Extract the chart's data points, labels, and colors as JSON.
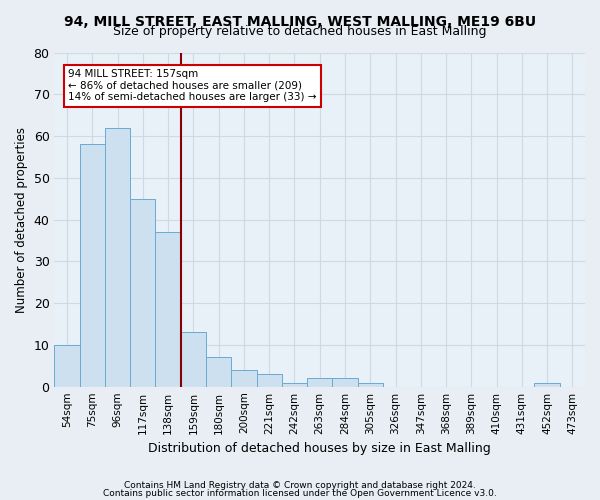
{
  "title1": "94, MILL STREET, EAST MALLING, WEST MALLING, ME19 6BU",
  "title2": "Size of property relative to detached houses in East Malling",
  "xlabel": "Distribution of detached houses by size in East Malling",
  "ylabel": "Number of detached properties",
  "bar_values": [
    10,
    58,
    62,
    45,
    37,
    13,
    7,
    4,
    3,
    1,
    2,
    2,
    1,
    0,
    0,
    0,
    0,
    0,
    0,
    1,
    0
  ],
  "bin_labels": [
    "54sqm",
    "75sqm",
    "96sqm",
    "117sqm",
    "138sqm",
    "159sqm",
    "180sqm",
    "200sqm",
    "221sqm",
    "242sqm",
    "263sqm",
    "284sqm",
    "305sqm",
    "326sqm",
    "347sqm",
    "368sqm",
    "389sqm",
    "410sqm",
    "431sqm",
    "452sqm",
    "473sqm"
  ],
  "bar_color": "#cde0f0",
  "bar_edge_color": "#6aaad4",
  "grid_color": "#d0d8e4",
  "vline_x_index": 5,
  "vline_color": "#880000",
  "annotation_text": "94 MILL STREET: 157sqm\n← 86% of detached houses are smaller (209)\n14% of semi-detached houses are larger (33) →",
  "annotation_box_facecolor": "#ffffff",
  "annotation_box_edgecolor": "#cc0000",
  "ylim": [
    0,
    80
  ],
  "yticks": [
    0,
    10,
    20,
    30,
    40,
    50,
    60,
    70,
    80
  ],
  "footer1": "Contains HM Land Registry data © Crown copyright and database right 2024.",
  "footer2": "Contains public sector information licensed under the Open Government Licence v3.0.",
  "fig_facecolor": "#e8eef4",
  "plot_facecolor": "#e8f0f8",
  "title1_fontsize": 10,
  "title2_fontsize": 9,
  "title1_fontweight": "bold"
}
